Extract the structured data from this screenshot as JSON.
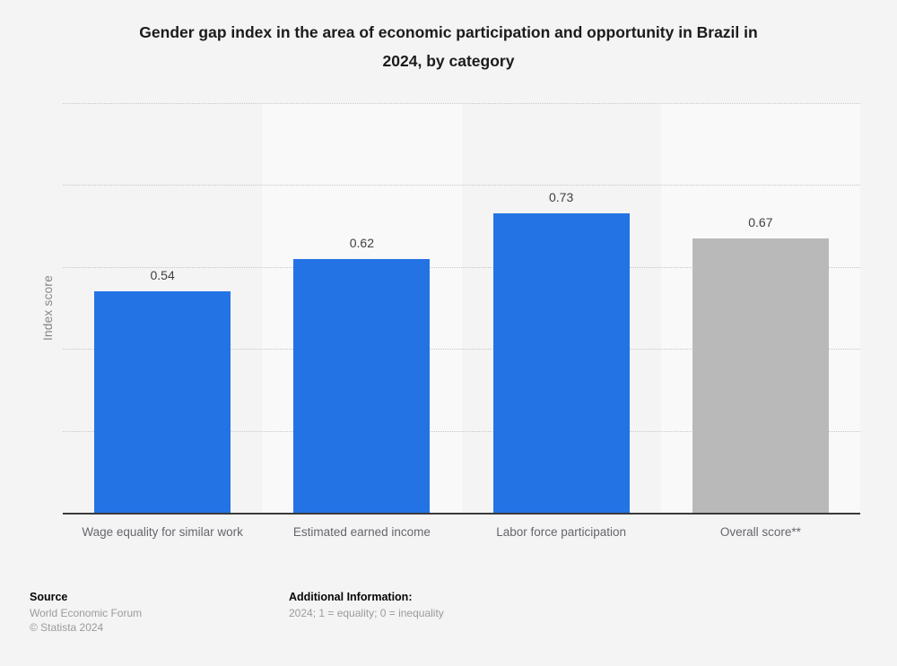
{
  "header": {
    "title_lines": [
      "Gender gap index in the area of economic participation and opportunity in Brazil in",
      "2024, by category"
    ]
  },
  "chart_data": {
    "type": "bar",
    "title": "Gender gap index in the area of economic participation and opportunity in Brazil in 2024, by category",
    "categories": [
      "Wage equality for similar work",
      "Estimated earned income",
      "Labor force participation",
      "Overall score**"
    ],
    "values": [
      0.54,
      0.62,
      0.73,
      0.67
    ],
    "value_labels": [
      "0.54",
      "0.62",
      "0.73",
      "0.67"
    ],
    "bar_colors": [
      "#2473e5",
      "#2473e5",
      "#2473e5",
      "#b9b9ba"
    ],
    "xlabel": "",
    "ylabel": "Index score",
    "ylim": [
      0,
      1
    ],
    "gridline_values": [
      0.2,
      0.4,
      0.6,
      0.8,
      1.0
    ],
    "grid": "horizontal-dotted",
    "y_tick_labels": "none",
    "legend_position": "none",
    "column_bands_alternate": true
  },
  "footer": {
    "source_heading": "Source",
    "source_lines": [
      "World Economic Forum",
      "© Statista 2024"
    ],
    "additional_heading": "Additional Information:",
    "additional_lines": [
      "2024; 1 = equality; 0 = inequality"
    ]
  },
  "colors": {
    "bar_blue": "#2473e5",
    "bar_gray": "#b9b9ba",
    "background": "#f4f4f5",
    "band_light": "#f9f9fa",
    "gridline": "#c6c6c8",
    "axis_line": "#3a3a3c",
    "title_text": "#1b1b1d",
    "label_gray": "#65666a",
    "footer_gray": "#9b9b9d"
  }
}
